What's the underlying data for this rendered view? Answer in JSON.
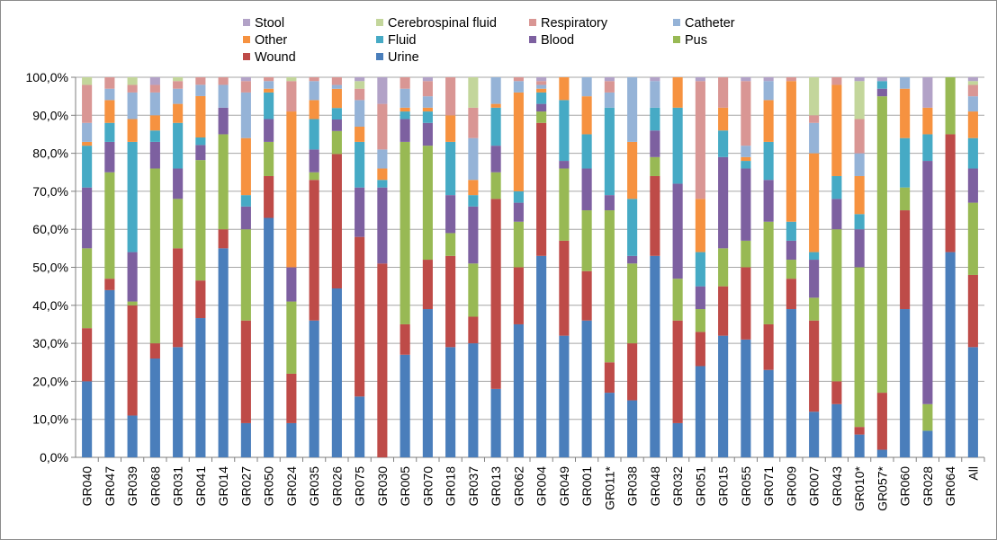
{
  "chart_data": {
    "type": "bar",
    "stacked": true,
    "percent": true,
    "categories": [
      "GR040",
      "GR047",
      "GR039",
      "GR068",
      "GR031",
      "GR041",
      "GR014",
      "GR027",
      "GR050",
      "GR024",
      "GR035",
      "GR026",
      "GR075",
      "GR030",
      "GR005",
      "GR070",
      "GR018",
      "GR037",
      "GR013",
      "GR062",
      "GR004",
      "GR049",
      "GR001",
      "GR011*",
      "GR038",
      "GR048",
      "GR032",
      "GR051",
      "GR015",
      "GR055",
      "GR071",
      "GR009",
      "GR007",
      "GR043",
      "GR010*",
      "GR057*",
      "GR060",
      "GR028",
      "GR064",
      "All"
    ],
    "ylim": [
      0,
      100
    ],
    "yticks": [
      "0,0%",
      "10,0%",
      "20,0%",
      "30,0%",
      "40,0%",
      "50,0%",
      "60,0%",
      "70,0%",
      "80,0%",
      "90,0%",
      "100,0%"
    ],
    "grid": true,
    "legend_position": "top",
    "series": [
      {
        "name": "Urine",
        "color": "#4a7ebb",
        "values": [
          20,
          44,
          11,
          26,
          29,
          37,
          55,
          9,
          63,
          9,
          36,
          44,
          16,
          0,
          27,
          39,
          29,
          30,
          18,
          35,
          53,
          32,
          36,
          17,
          15,
          53,
          9,
          24,
          32,
          31,
          23,
          39,
          12,
          14,
          6,
          2,
          39,
          7,
          54,
          29
        ]
      },
      {
        "name": "Wound",
        "color": "#be4b48",
        "values": [
          14,
          3,
          29,
          4,
          26,
          10,
          5,
          27,
          11,
          13,
          37,
          35,
          42,
          51,
          8,
          13,
          24,
          7,
          50,
          15,
          35,
          25,
          13,
          8,
          15,
          21,
          27,
          9,
          13,
          19,
          12,
          8,
          24,
          6,
          2,
          15,
          26,
          0,
          31,
          19
        ]
      },
      {
        "name": "Pus",
        "color": "#98b954",
        "values": [
          21,
          28,
          1,
          46,
          13,
          32,
          25,
          24,
          9,
          19,
          2,
          6,
          0,
          0,
          48,
          30,
          6,
          14,
          7,
          12,
          3,
          19,
          16,
          40,
          21,
          5,
          11,
          6,
          10,
          7,
          27,
          5,
          6,
          40,
          42,
          78,
          6,
          7,
          15,
          19
        ]
      },
      {
        "name": "Blood",
        "color": "#7d60a0",
        "values": [
          16,
          8,
          13,
          7,
          8,
          4,
          7,
          6,
          6,
          9,
          6,
          3,
          13,
          20,
          6,
          6,
          10,
          15,
          7,
          5,
          2,
          2,
          11,
          4,
          2,
          7,
          25,
          6,
          24,
          19,
          11,
          5,
          10,
          8,
          10,
          2,
          0,
          64,
          0,
          9
        ]
      },
      {
        "name": "Fluid",
        "color": "#46aac5",
        "values": [
          11,
          5,
          29,
          3,
          12,
          2,
          0,
          3,
          7,
          0,
          8,
          3,
          12,
          2,
          2,
          3,
          14,
          3,
          10,
          3,
          3,
          16,
          9,
          23,
          15,
          6,
          20,
          9,
          7,
          2,
          10,
          5,
          2,
          6,
          4,
          2,
          13,
          7,
          0,
          8
        ]
      },
      {
        "name": "Other",
        "color": "#f69240",
        "values": [
          1,
          6,
          6,
          4,
          5,
          11,
          0,
          15,
          1,
          41,
          5,
          5,
          4,
          3,
          1,
          1,
          7,
          4,
          1,
          26,
          1,
          6,
          10,
          0,
          15,
          0,
          8,
          14,
          6,
          1,
          11,
          37,
          26,
          24,
          10,
          0,
          13,
          7,
          0,
          7
        ]
      },
      {
        "name": "Catheter",
        "color": "#95b3d7",
        "values": [
          5,
          3,
          7,
          6,
          4,
          3,
          6,
          12,
          2,
          0,
          5,
          1,
          7,
          5,
          5,
          3,
          0,
          11,
          7,
          3,
          1,
          0,
          5,
          4,
          17,
          7,
          0,
          0,
          0,
          3,
          5,
          0,
          8,
          0,
          6,
          0,
          3,
          0,
          0,
          4
        ]
      },
      {
        "name": "Respiratory",
        "color": "#d99694",
        "values": [
          10,
          3,
          2,
          2,
          2,
          2,
          2,
          3,
          1,
          8,
          1,
          2,
          3,
          12,
          3,
          4,
          10,
          8,
          0,
          1,
          1,
          0,
          0,
          3,
          0,
          0,
          0,
          31,
          8,
          17,
          0,
          1,
          2,
          2,
          9,
          0,
          0,
          0,
          0,
          3
        ]
      },
      {
        "name": "Cerebrospinal fluid",
        "color": "#c3d69b",
        "values": [
          2,
          0,
          2,
          0,
          1,
          0,
          0,
          0,
          0,
          1,
          0,
          0,
          2,
          0,
          0,
          0,
          0,
          8,
          0,
          0,
          0,
          0,
          0,
          0,
          0,
          0,
          0,
          0,
          0,
          0,
          0,
          0,
          10,
          0,
          10,
          0,
          0,
          0,
          0,
          1
        ]
      },
      {
        "name": "Stool",
        "color": "#b2a2c7",
        "values": [
          0,
          0,
          0,
          2,
          0,
          0,
          0,
          1,
          0,
          0,
          0,
          0,
          1,
          7,
          0,
          1,
          0,
          0,
          0,
          0,
          1,
          0,
          0,
          1,
          0,
          1,
          0,
          1,
          0,
          1,
          1,
          0,
          0,
          0,
          1,
          1,
          0,
          8,
          0,
          1
        ]
      }
    ]
  },
  "legend": {
    "rows": [
      [
        "Stool",
        "Cerebrospinal fluid",
        "Respiratory",
        "Catheter"
      ],
      [
        "Other",
        "Fluid",
        "Blood",
        "Pus"
      ],
      [
        "Wound",
        "Urine"
      ]
    ]
  }
}
